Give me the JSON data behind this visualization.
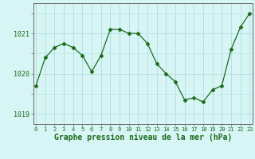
{
  "x": [
    0,
    1,
    2,
    3,
    4,
    5,
    6,
    7,
    8,
    9,
    10,
    11,
    12,
    13,
    14,
    15,
    16,
    17,
    18,
    19,
    20,
    21,
    22,
    23
  ],
  "y": [
    1019.7,
    1020.4,
    1020.65,
    1020.75,
    1020.65,
    1020.45,
    1020.05,
    1020.45,
    1021.1,
    1021.1,
    1021.0,
    1021.0,
    1020.75,
    1020.25,
    1020.0,
    1019.8,
    1019.35,
    1019.4,
    1019.3,
    1019.6,
    1019.7,
    1020.6,
    1021.15,
    1021.5
  ],
  "line_color": "#1a6b1a",
  "marker": "D",
  "marker_size": 2.5,
  "background_color": "#d8f5f5",
  "grid_color": "#b0dede",
  "xlabel": "Graphe pression niveau de la mer (hPa)",
  "xlabel_fontsize": 7,
  "ytick_labels": [
    "1019",
    "1020",
    "1021"
  ],
  "ytick_vals": [
    1019,
    1020,
    1021
  ],
  "ylim": [
    1018.75,
    1021.75
  ],
  "xlim": [
    -0.3,
    23.3
  ],
  "axis_color": "#666666",
  "xtick_fontsize": 5,
  "ytick_fontsize": 6
}
